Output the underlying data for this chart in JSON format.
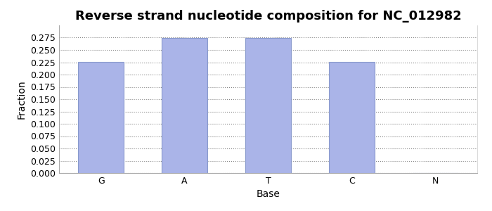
{
  "title": "Reverse strand nucleotide composition for NC_012982",
  "categories": [
    "G",
    "A",
    "T",
    "C",
    "N"
  ],
  "values": [
    0.226,
    0.274,
    0.274,
    0.226,
    0.0
  ],
  "bar_color": "#aab4e8",
  "bar_edgecolor": "#8899cc",
  "xlabel": "Base",
  "ylabel": "Fraction",
  "ylim": [
    0.0,
    0.3
  ],
  "ytick_step": 0.025,
  "title_fontsize": 13,
  "label_fontsize": 10,
  "tick_fontsize": 9,
  "grid_color": "#888888",
  "bg_color": "#ffffff",
  "font_family": "DejaVu Sans"
}
